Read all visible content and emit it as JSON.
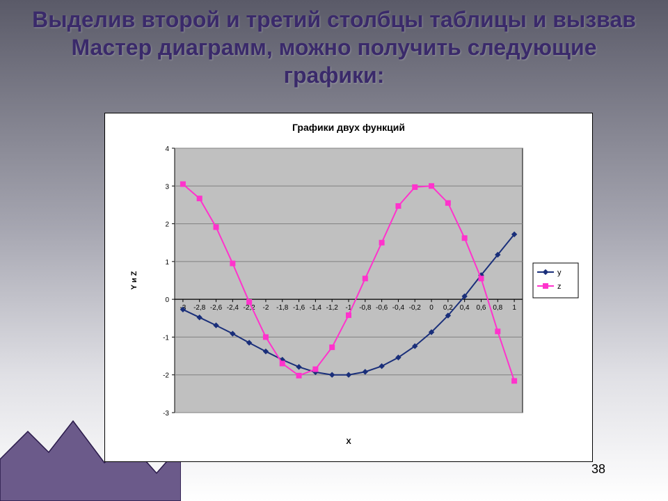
{
  "heading": "Выделив второй и третий столбцы таблицы и вызвав Мастер диаграмм, можно получить следующие графики:",
  "page_number": "38",
  "chart": {
    "type": "line",
    "title": "Графики двух функций",
    "title_fontsize": 14,
    "title_weight": "bold",
    "xlabel": "X",
    "ylabel": "Y и Z",
    "label_fontsize": 11,
    "label_weight": "bold",
    "background_color": "#ffffff",
    "plot_background_color": "#c0c0c0",
    "grid_color": "#808080",
    "axis_color": "#000000",
    "tick_fontsize": 10,
    "x_categories": [
      "-3",
      "-2,8",
      "-2,6",
      "-2,4",
      "-2,2",
      "-2",
      "-1,8",
      "-1,6",
      "-1,4",
      "-1,2",
      "-1",
      "-0,8",
      "-0,6",
      "-0,4",
      "-0,2",
      "0",
      "0,2",
      "0,4",
      "0,6",
      "0,8",
      "1"
    ],
    "ylim": [
      -3,
      4
    ],
    "ytick_step": 1,
    "series": [
      {
        "name": "y",
        "color": "#1a2f7a",
        "marker": "diamond",
        "marker_size": 7,
        "line_width": 2,
        "values": [
          -0.27,
          -0.48,
          -0.69,
          -0.91,
          -1.15,
          -1.38,
          -1.6,
          -1.79,
          -1.93,
          -2.0,
          -2.0,
          -1.92,
          -1.77,
          -1.54,
          -1.24,
          -0.87,
          -0.43,
          0.08,
          0.64,
          1.18,
          1.72
        ]
      },
      {
        "name": "z",
        "color": "#ff33cc",
        "marker": "square",
        "marker_size": 7,
        "line_width": 2,
        "values": [
          3.05,
          2.67,
          1.91,
          0.95,
          -0.07,
          -1.0,
          -1.7,
          -2.02,
          -1.85,
          -1.27,
          -0.42,
          0.55,
          1.5,
          2.47,
          2.97,
          3.0,
          2.55,
          1.62,
          0.55,
          -0.85,
          -2.16
        ]
      }
    ],
    "legend": {
      "position": "right",
      "border_color": "#000000",
      "background": "#ffffff",
      "fontsize": 11
    }
  },
  "mountain": {
    "fill": "#6b5a8a",
    "stroke": "#2a1a4a"
  }
}
